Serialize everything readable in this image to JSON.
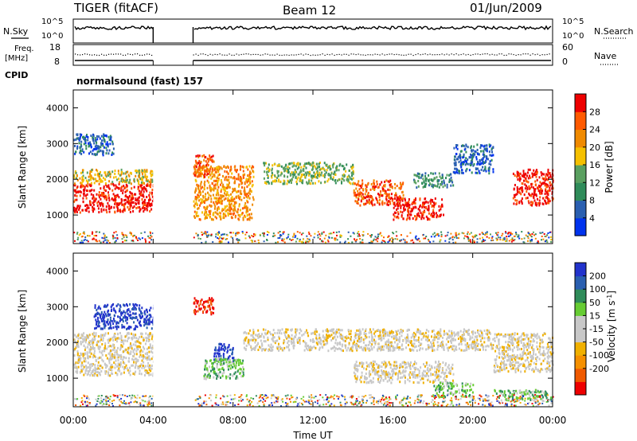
{
  "header": {
    "title": "TIGER (fitACF)",
    "beam": "Beam 12",
    "date": "01/Jun/2009"
  },
  "status_panels": {
    "nsky_label": "N.Sky",
    "nsearch_label": "N.Search",
    "count_ticks": [
      "10^5",
      "10^0"
    ],
    "freq_label_line1": "Freq.",
    "freq_label_line2": "[MHz]",
    "freq_ticks": [
      "18",
      "8"
    ],
    "nave_label": "Nave",
    "nave_ticks": [
      "60",
      "0"
    ],
    "cpid_label": "CPID",
    "cpid_value": "normalsound (fast) 157"
  },
  "colors": {
    "power_scale": [
      "#0033ee",
      "#2a5fb0",
      "#2f8c5a",
      "#5aa060",
      "#f5c000",
      "#f08a00",
      "#ff5a00",
      "#ee0000"
    ],
    "velocity_scale": [
      "#ee0000",
      "#f05a00",
      "#f59000",
      "#f0b000",
      "#c8c8c8",
      "#c8c8c8",
      "#66cc33",
      "#2f8c5a",
      "#2a5fb0",
      "#2233cc"
    ]
  },
  "chart_data": [
    {
      "type": "heatmap",
      "name": "power",
      "ylabel": "Slant Range [km]",
      "colorbar_label": "Power [dB]",
      "colorbar_ticks": [
        "28",
        "24",
        "20",
        "16",
        "12",
        "8",
        "4"
      ],
      "yticks": [
        "4000",
        "3000",
        "2000",
        "1000"
      ],
      "ylim": [
        200,
        4500
      ],
      "xlim": [
        0,
        24
      ],
      "data_gap_hours": [
        4.0,
        6.0
      ],
      "bands": [
        {
          "t0": 0.0,
          "t1": 4.0,
          "r0": 1100,
          "r1": 1900,
          "level": 7
        },
        {
          "t0": 0.0,
          "t1": 4.0,
          "r0": 1900,
          "r1": 2300,
          "level": 4
        },
        {
          "t0": 0.0,
          "t1": 2.0,
          "r0": 2700,
          "r1": 3300,
          "level": 1
        },
        {
          "t0": 6.0,
          "t1": 9.0,
          "r0": 900,
          "r1": 2400,
          "level": 5
        },
        {
          "t0": 6.0,
          "t1": 7.0,
          "r0": 2100,
          "r1": 2700,
          "level": 6
        },
        {
          "t0": 9.5,
          "t1": 14.0,
          "r0": 1900,
          "r1": 2500,
          "level": 3
        },
        {
          "t0": 14.0,
          "t1": 16.5,
          "r0": 1300,
          "r1": 2000,
          "level": 6
        },
        {
          "t0": 16.0,
          "t1": 18.5,
          "r0": 900,
          "r1": 1500,
          "level": 7
        },
        {
          "t0": 17.0,
          "t1": 19.0,
          "r0": 1800,
          "r1": 2200,
          "level": 2
        },
        {
          "t0": 19.0,
          "t1": 21.0,
          "r0": 2200,
          "r1": 3000,
          "level": 1
        },
        {
          "t0": 22.0,
          "t1": 24.0,
          "r0": 1300,
          "r1": 2300,
          "level": 7
        }
      ]
    },
    {
      "type": "heatmap",
      "name": "velocity",
      "ylabel": "Slant Range [km]",
      "colorbar_label": "Velocity [m s",
      "colorbar_label_exp": "-1",
      "colorbar_label_end": "]",
      "colorbar_ticks": [
        "200",
        "100",
        "50",
        "15",
        "-15",
        "-50",
        "-100",
        "-200"
      ],
      "yticks": [
        "4000",
        "3000",
        "2000",
        "1000"
      ],
      "ylim": [
        200,
        4500
      ],
      "xlim": [
        0,
        24
      ],
      "data_gap_hours": [
        4.0,
        6.0
      ],
      "bands": [
        {
          "t0": 0.0,
          "t1": 4.0,
          "r0": 1100,
          "r1": 2300,
          "level": 4
        },
        {
          "t0": 1.0,
          "t1": 4.0,
          "r0": 2400,
          "r1": 3100,
          "level": 9
        },
        {
          "t0": 6.0,
          "t1": 7.0,
          "r0": 2800,
          "r1": 3300,
          "level": 0
        },
        {
          "t0": 7.0,
          "t1": 8.0,
          "r0": 1500,
          "r1": 2000,
          "level": 9
        },
        {
          "t0": 6.5,
          "t1": 8.5,
          "r0": 1000,
          "r1": 1600,
          "level": 6
        },
        {
          "t0": 8.5,
          "t1": 21.0,
          "r0": 1800,
          "r1": 2400,
          "level": 4
        },
        {
          "t0": 14.0,
          "t1": 19.0,
          "r0": 900,
          "r1": 1500,
          "level": 4
        },
        {
          "t0": 18.0,
          "t1": 20.0,
          "r0": 500,
          "r1": 900,
          "level": 6
        },
        {
          "t0": 21.0,
          "t1": 24.0,
          "r0": 1200,
          "r1": 2300,
          "level": 4
        },
        {
          "t0": 21.0,
          "t1": 24.0,
          "r0": 400,
          "r1": 700,
          "level": 6
        }
      ]
    }
  ],
  "x_axis": {
    "ticks": [
      "00:00",
      "04:00",
      "08:00",
      "12:00",
      "16:00",
      "20:00",
      "00:00"
    ],
    "label": "Time UT"
  }
}
